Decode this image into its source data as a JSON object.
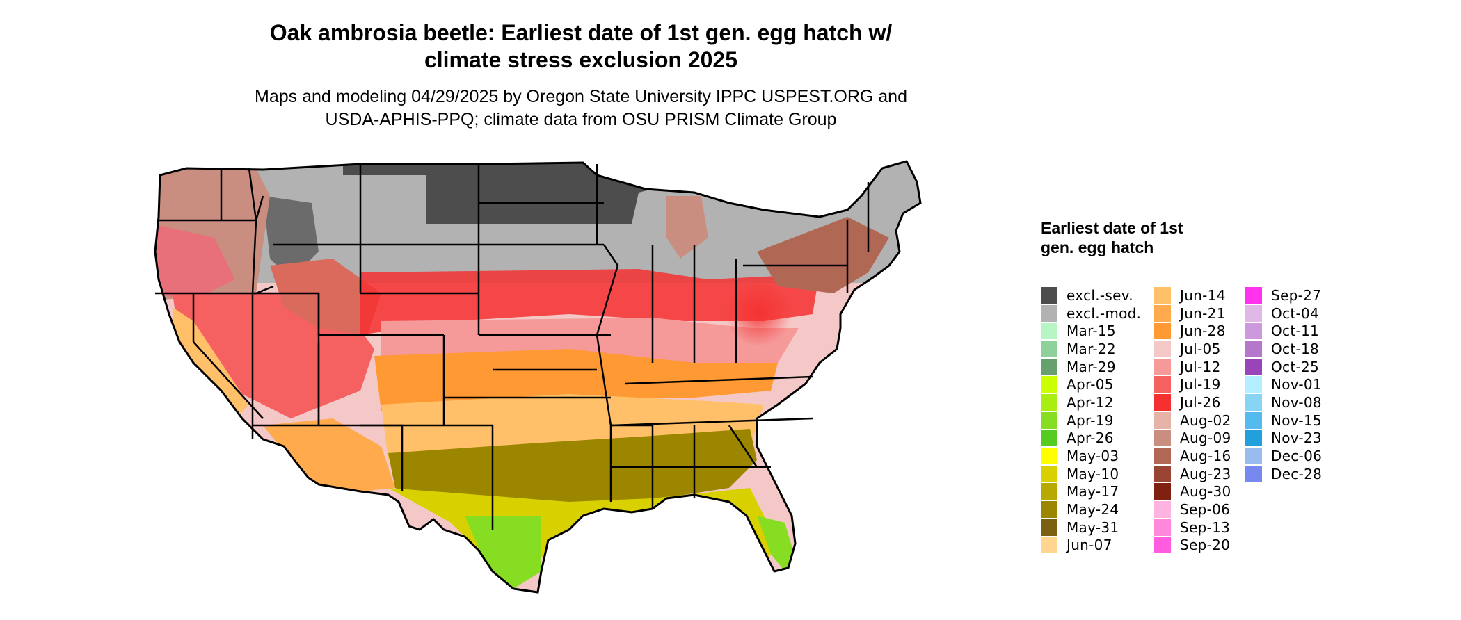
{
  "title_line1": "Oak ambrosia beetle: Earliest date of 1st gen. egg hatch w/",
  "title_line2": "climate stress exclusion 2025",
  "subtitle_line1": "Maps and modeling 04/29/2025 by Oregon State University IPPC USPEST.ORG and",
  "subtitle_line2": "USDA-APHIS-PPQ; climate data from OSU PRISM Climate Group",
  "legend": {
    "title": "Earliest date of 1st gen. egg hatch",
    "columns": [
      [
        {
          "label": "excl.-sev.",
          "color": "#4d4d4d"
        },
        {
          "label": "excl.-mod.",
          "color": "#b2b2b2"
        },
        {
          "label": "Mar-15",
          "color": "#b7f5c5"
        },
        {
          "label": "Mar-22",
          "color": "#8fd19a"
        },
        {
          "label": "Mar-29",
          "color": "#66a06e"
        },
        {
          "label": "Apr-05",
          "color": "#ccff00"
        },
        {
          "label": "Apr-12",
          "color": "#a8ee11"
        },
        {
          "label": "Apr-19",
          "color": "#86dd22"
        },
        {
          "label": "Apr-26",
          "color": "#55cc22"
        },
        {
          "label": "May-03",
          "color": "#ffff00"
        },
        {
          "label": "May-10",
          "color": "#d9d000"
        },
        {
          "label": "May-17",
          "color": "#b8a900"
        },
        {
          "label": "May-24",
          "color": "#9c8600"
        },
        {
          "label": "May-31",
          "color": "#7a6010"
        },
        {
          "label": "Jun-07",
          "color": "#ffd590"
        }
      ],
      [
        {
          "label": "Jun-14",
          "color": "#ffc069"
        },
        {
          "label": "Jun-21",
          "color": "#ffaa4c"
        },
        {
          "label": "Jun-28",
          "color": "#ff9933"
        },
        {
          "label": "Jul-05",
          "color": "#f5c8c8"
        },
        {
          "label": "Jul-12",
          "color": "#f59999"
        },
        {
          "label": "Jul-19",
          "color": "#f56060"
        },
        {
          "label": "Jul-26",
          "color": "#f53030"
        },
        {
          "label": "Aug-02",
          "color": "#e6b3a8"
        },
        {
          "label": "Aug-09",
          "color": "#c98e80"
        },
        {
          "label": "Aug-16",
          "color": "#b06855"
        },
        {
          "label": "Aug-23",
          "color": "#9a4434"
        },
        {
          "label": "Aug-30",
          "color": "#7f2110"
        },
        {
          "label": "Sep-06",
          "color": "#ffb3e0"
        },
        {
          "label": "Sep-13",
          "color": "#ff88dc"
        },
        {
          "label": "Sep-20",
          "color": "#ff5ce0"
        }
      ],
      [
        {
          "label": "Sep-27",
          "color": "#ff33ee"
        },
        {
          "label": "Oct-04",
          "color": "#e0b8e8"
        },
        {
          "label": "Oct-11",
          "color": "#cc99dd"
        },
        {
          "label": "Oct-18",
          "color": "#b577cc"
        },
        {
          "label": "Oct-25",
          "color": "#9944b8"
        },
        {
          "label": "Nov-01",
          "color": "#b3eeff"
        },
        {
          "label": "Nov-08",
          "color": "#88d4f5"
        },
        {
          "label": "Nov-15",
          "color": "#55bbee"
        },
        {
          "label": "Nov-23",
          "color": "#22a0dd"
        },
        {
          "label": "Dec-06",
          "color": "#99bbee"
        },
        {
          "label": "Dec-28",
          "color": "#7788ee"
        }
      ]
    ]
  }
}
